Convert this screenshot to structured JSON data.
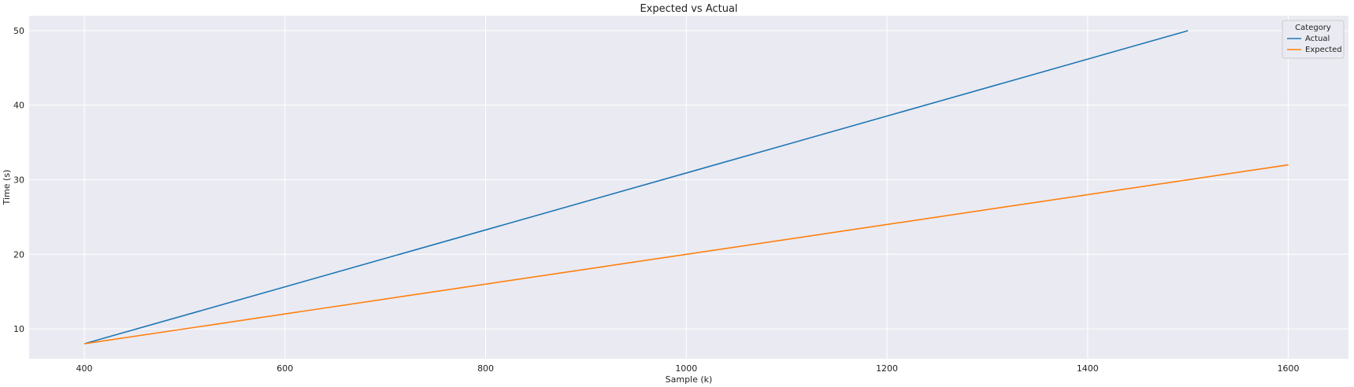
{
  "chart_data": {
    "type": "line",
    "title": "Expected vs Actual",
    "xlabel": "Sample (k)",
    "ylabel": "Time (s)",
    "xlim": [
      345,
      1660
    ],
    "ylim": [
      6,
      52
    ],
    "xticks": [
      400,
      600,
      800,
      1000,
      1200,
      1400,
      1600
    ],
    "yticks": [
      10,
      20,
      30,
      40,
      50
    ],
    "grid": true,
    "legend": {
      "title": "Category",
      "placement": "top-right"
    },
    "series": [
      {
        "name": "Actual",
        "color": "#1f77b4",
        "x": [
          400,
          1500
        ],
        "y": [
          8,
          50
        ]
      },
      {
        "name": "Expected",
        "color": "#ff7f0e",
        "x": [
          400,
          1600
        ],
        "y": [
          8,
          32
        ]
      }
    ],
    "colors": {
      "plot_background": "#eaeaf2",
      "grid": "#ffffff"
    }
  }
}
